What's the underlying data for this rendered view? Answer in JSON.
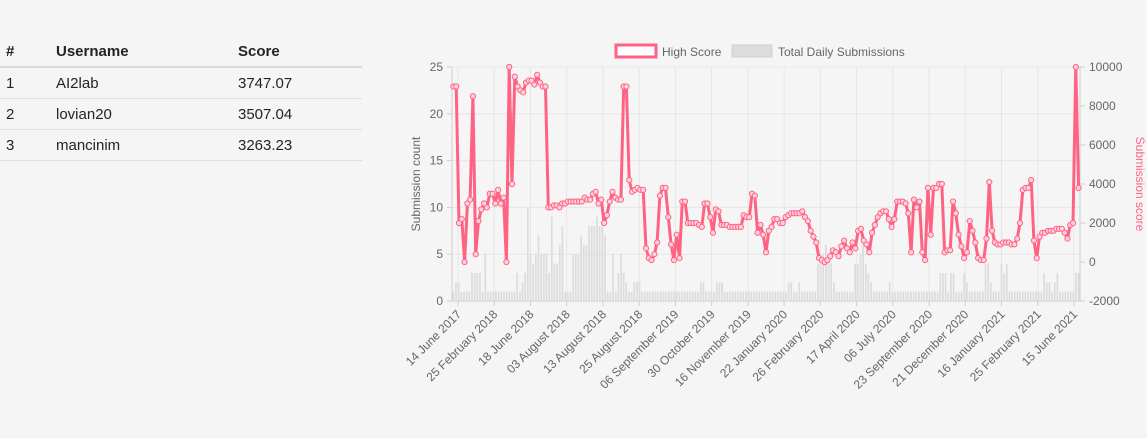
{
  "leaderboard": {
    "headers": {
      "rank": "#",
      "username": "Username",
      "score": "Score"
    },
    "rows": [
      {
        "rank": "1",
        "username": "AI2lab",
        "score": "3747.07"
      },
      {
        "rank": "2",
        "username": "lovian20",
        "score": "3507.04"
      },
      {
        "rank": "3",
        "username": "mancinim",
        "score": "3263.23"
      }
    ]
  },
  "chart_data": {
    "type": "bar+line",
    "legend": {
      "position": "top-center",
      "entries": [
        "High Score",
        "Total Daily Submissions"
      ]
    },
    "y_left": {
      "label": "Submission count",
      "ticks": [
        "0",
        "5",
        "10",
        "15",
        "20",
        "25"
      ],
      "range": [
        0,
        25
      ]
    },
    "y_right": {
      "label": "Submission score",
      "ticks": [
        "-2000",
        "0",
        "2000",
        "4000",
        "6000",
        "8000",
        "10000"
      ],
      "range": [
        -2000,
        10000
      ]
    },
    "x_tick_labels": [
      "14 June 2017",
      "25 February 2018",
      "18 June 2018",
      "03 August 2018",
      "13 August 2018",
      "25 August 2018",
      "06 September 2019",
      "30 October 2019",
      "16 November 2019",
      "22 January 2020",
      "26 February 2020",
      "17 April 2020",
      "06 July 2020",
      "23 September 2020",
      "21 December 2020",
      "16 January 2021",
      "25 February 2021",
      "15 June 2021"
    ],
    "series": [
      {
        "name": "High Score",
        "axis": "right",
        "color": "#ff6384",
        "values": [
          9000,
          9000,
          2000,
          2200,
          0,
          3000,
          3200,
          8500,
          400,
          2100,
          2700,
          3000,
          2800,
          3500,
          3500,
          3000,
          3700,
          3000,
          3300,
          0,
          10000,
          4000,
          9500,
          9000,
          8800,
          8700,
          9200,
          9300,
          9300,
          9100,
          9600,
          9200,
          9000,
          9000,
          2800,
          2800,
          2900,
          2900,
          2800,
          3000,
          3000,
          3100,
          3100,
          3100,
          3100,
          3100,
          3100,
          3300,
          3200,
          3200,
          3500,
          3600,
          3000,
          3200,
          2000,
          2400,
          3100,
          3600,
          3300,
          3200,
          3200,
          9000,
          9000,
          4200,
          3600,
          3700,
          3800,
          3700,
          3700,
          700,
          200,
          100,
          400,
          1000,
          3400,
          3800,
          3800,
          2300,
          900,
          100,
          1400,
          200,
          3100,
          3100,
          2000,
          2000,
          2000,
          2000,
          1900,
          1800,
          3000,
          3000,
          2300,
          1500,
          2700,
          2600,
          1900,
          1900,
          1900,
          1800,
          1800,
          1800,
          1800,
          1800,
          2400,
          2300,
          2300,
          3500,
          3400,
          1500,
          1900,
          1400,
          500,
          1600,
          1800,
          2200,
          2200,
          2000,
          2000,
          2300,
          2400,
          2500,
          2500,
          2500,
          2500,
          2600,
          2300,
          2100,
          1600,
          1300,
          1000,
          200,
          100,
          0,
          100,
          300,
          600,
          500,
          300,
          800,
          1100,
          700,
          500,
          1000,
          700,
          1600,
          1700,
          1100,
          900,
          500,
          1500,
          1900,
          2300,
          2500,
          2600,
          2600,
          2200,
          1800,
          2200,
          3100,
          3100,
          3100,
          3000,
          2500,
          500,
          3200,
          2800,
          3100,
          500,
          100,
          3800,
          1400,
          3800,
          3800,
          4000,
          4000,
          500,
          600,
          600,
          3100,
          2500,
          1400,
          800,
          200,
          500,
          2100,
          1600,
          1000,
          200,
          100,
          100,
          1200,
          4100,
          1600,
          1000,
          900,
          900,
          1000,
          1000,
          1000,
          900,
          900,
          1200,
          2000,
          3700,
          3800,
          3800,
          4200,
          1100,
          200,
          1300,
          1500,
          1500,
          1600,
          1600,
          1600,
          1700,
          1700,
          1700,
          1500,
          1200,
          1900,
          2000,
          10000,
          3800
        ]
      },
      {
        "name": "Total Daily Submissions",
        "axis": "left",
        "color": "#dcdcdc",
        "values": [
          1,
          2,
          2,
          1,
          1,
          1,
          1,
          3,
          3,
          3,
          3,
          1,
          5,
          1,
          1,
          1,
          1,
          1,
          1,
          1,
          1,
          1,
          1,
          1,
          3,
          1,
          2,
          3,
          10,
          5,
          4,
          5,
          7,
          5,
          5,
          5,
          3,
          9,
          4,
          4,
          6,
          8,
          1,
          1,
          1,
          5,
          5,
          5,
          7,
          6,
          6,
          8,
          8,
          8,
          9,
          8,
          8,
          7,
          1,
          1,
          5,
          1,
          3,
          5,
          3,
          2,
          1,
          1,
          2,
          2,
          2,
          1,
          1,
          1,
          1,
          1,
          1,
          1,
          1,
          1,
          1,
          1,
          1,
          1,
          1,
          1,
          1,
          1,
          1,
          1,
          1,
          1,
          1,
          2,
          2,
          1,
          1,
          1,
          1,
          2,
          2,
          2,
          1,
          1,
          1,
          1,
          1,
          1,
          1,
          1,
          1,
          1,
          1,
          1,
          1,
          1,
          1,
          1,
          1,
          1,
          1,
          1,
          1,
          1,
          1,
          1,
          2,
          2,
          1,
          1,
          2,
          1,
          1,
          1,
          1,
          1,
          1,
          4,
          5,
          5,
          6,
          5,
          4,
          2,
          1,
          1,
          1,
          1,
          1,
          1,
          1,
          4,
          4,
          5,
          6,
          4,
          3,
          2,
          1,
          1,
          1,
          1,
          1,
          1,
          2,
          1,
          1,
          1,
          1,
          1,
          1,
          1,
          1,
          1,
          1,
          1,
          1,
          1,
          1,
          1,
          1,
          1,
          1,
          3,
          3,
          3,
          1,
          3,
          3,
          1,
          1,
          1,
          3,
          2,
          1,
          1,
          1,
          1,
          1,
          1,
          4,
          4,
          2,
          1,
          1,
          1,
          4,
          3,
          4,
          1,
          1,
          1,
          1,
          1,
          1,
          1,
          1,
          1,
          1,
          1,
          1,
          1,
          3,
          2,
          2,
          1,
          2,
          3,
          1,
          1,
          1,
          1,
          1,
          1,
          3,
          3
        ]
      }
    ]
  }
}
